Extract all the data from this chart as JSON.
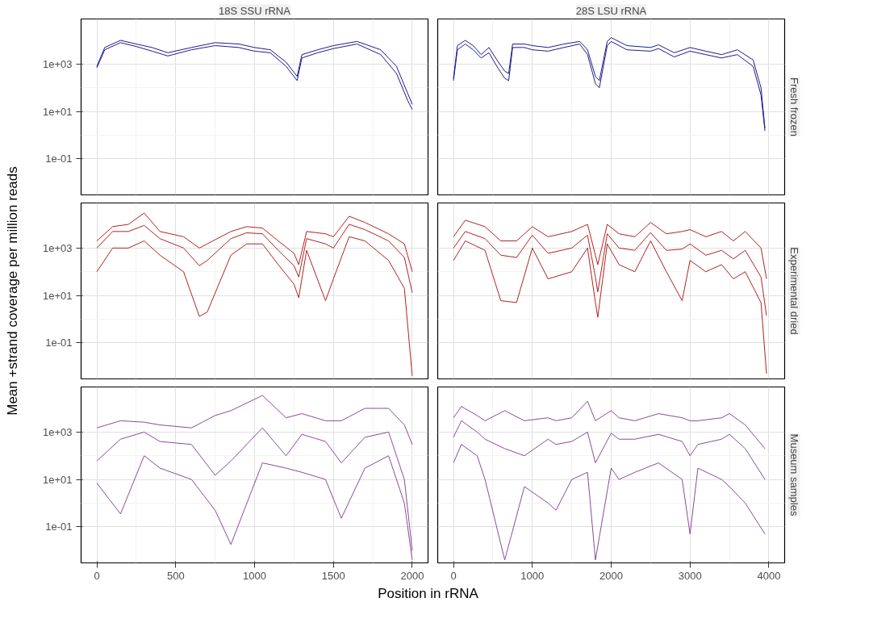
{
  "chart_data": [
    {
      "type": "line",
      "title": "18S SSU rRNA",
      "log": "y",
      "grid": true,
      "tick_labels": "y",
      "line_style": "solid",
      "xlim": [
        -100,
        2100
      ],
      "xticks": [
        0,
        500,
        1000,
        1500,
        2000
      ],
      "ylim": [
        0.003,
        80000
      ],
      "yticks": [
        {
          "value": 0.1,
          "label": "1e-01"
        },
        {
          "value": 10,
          "label": "1e+01"
        },
        {
          "value": 1000,
          "label": "1e+03"
        }
      ],
      "x": [
        0,
        50,
        150,
        250,
        350,
        450,
        600,
        750,
        900,
        1000,
        1100,
        1200,
        1270,
        1300,
        1400,
        1500,
        1650,
        1800,
        1900,
        1970,
        2000
      ],
      "series": [
        {
          "color": "#1c1c8f",
          "values": [
            800,
            5000,
            10000,
            7000,
            5000,
            3000,
            5000,
            8000,
            7000,
            5000,
            4000,
            1200,
            300,
            2500,
            4000,
            6000,
            9000,
            4000,
            800,
            60,
            20
          ]
        },
        {
          "color": "#1c1c8f",
          "values": [
            700,
            4000,
            8000,
            5500,
            3500,
            2200,
            4000,
            6000,
            5000,
            3500,
            3000,
            800,
            200,
            1800,
            3000,
            4500,
            7000,
            2500,
            400,
            30,
            12
          ]
        }
      ]
    },
    {
      "type": "line",
      "title": "28S LSU rRNA",
      "y2label": "Fresh frozen",
      "log": "y",
      "grid": true,
      "tick_labels": false,
      "line_style": "solid",
      "xlim": [
        -200,
        4200
      ],
      "xticks": [
        0,
        1000,
        2000,
        3000,
        4000
      ],
      "ylim": [
        0.003,
        80000
      ],
      "yticks": [
        {
          "value": 0.1,
          "label": null
        },
        {
          "value": 10,
          "label": null
        },
        {
          "value": 1000,
          "label": null
        }
      ],
      "x": [
        0,
        50,
        150,
        250,
        350,
        450,
        550,
        650,
        700,
        750,
        900,
        1000,
        1200,
        1400,
        1600,
        1700,
        1800,
        1850,
        1950,
        2000,
        2200,
        2500,
        2600,
        2800,
        3000,
        3200,
        3400,
        3600,
        3800,
        3900,
        3950
      ],
      "series": [
        {
          "color": "#1c1c8f",
          "values": [
            250,
            6000,
            10000,
            6000,
            2500,
            5000,
            1500,
            500,
            400,
            7000,
            7000,
            6000,
            5000,
            7000,
            9000,
            4000,
            300,
            200,
            9000,
            13000,
            6000,
            5000,
            6500,
            3000,
            5000,
            3500,
            2500,
            4000,
            1500,
            100,
            2
          ]
        },
        {
          "color": "#1c1c8f",
          "values": [
            200,
            4000,
            7000,
            4000,
            1800,
            3000,
            800,
            250,
            200,
            5000,
            5000,
            4000,
            3500,
            5000,
            7000,
            2500,
            150,
            100,
            6000,
            9000,
            4000,
            3500,
            4500,
            2000,
            3500,
            2500,
            1800,
            2500,
            800,
            50,
            1.5
          ]
        }
      ]
    },
    {
      "type": "line",
      "ylabel": "Mean +strand coverage per million reads",
      "log": "y",
      "grid": true,
      "tick_labels": "y",
      "line_style": "solid",
      "xlim": [
        -100,
        2100
      ],
      "xticks": [
        0,
        500,
        1000,
        1500,
        2000
      ],
      "ylim": [
        0.003,
        80000
      ],
      "yticks": [
        {
          "value": 0.1,
          "label": "1e-01"
        },
        {
          "value": 10,
          "label": "1e+01"
        },
        {
          "value": 1000,
          "label": "1e+03"
        }
      ],
      "x": [
        0,
        100,
        200,
        300,
        400,
        550,
        650,
        700,
        850,
        950,
        1050,
        1150,
        1250,
        1280,
        1330,
        1450,
        1500,
        1600,
        1700,
        1850,
        1950,
        2000
      ],
      "series": [
        {
          "color": "#b22222",
          "values": [
            2000,
            8000,
            10000,
            30000,
            5000,
            3000,
            1000,
            1500,
            5000,
            8000,
            7000,
            2000,
            600,
            200,
            5000,
            4000,
            3000,
            22000,
            12000,
            4000,
            1500,
            100
          ]
        },
        {
          "color": "#b22222",
          "values": [
            1000,
            5000,
            5000,
            9000,
            2500,
            1000,
            180,
            300,
            2500,
            4400,
            4000,
            800,
            180,
            60,
            2500,
            1500,
            1000,
            10000,
            6000,
            2000,
            400,
            13
          ]
        },
        {
          "color": "#b22222",
          "values": [
            100,
            1000,
            1000,
            2000,
            500,
            100,
            1.3,
            2,
            500,
            1500,
            1500,
            200,
            30,
            8,
            800,
            6,
            50,
            3000,
            2000,
            300,
            20,
            0.004
          ]
        }
      ]
    },
    {
      "type": "line",
      "y2label": "Experimental dried",
      "log": "y",
      "grid": true,
      "tick_labels": false,
      "line_style": "solid",
      "xlim": [
        -200,
        4200
      ],
      "xticks": [
        0,
        1000,
        2000,
        3000,
        4000
      ],
      "ylim": [
        0.003,
        80000
      ],
      "yticks": [
        {
          "value": 0.1,
          "label": null
        },
        {
          "value": 10,
          "label": null
        },
        {
          "value": 1000,
          "label": null
        }
      ],
      "x": [
        0,
        150,
        400,
        600,
        800,
        1000,
        1200,
        1500,
        1700,
        1800,
        1830,
        1950,
        2100,
        2300,
        2500,
        2700,
        2900,
        3000,
        3200,
        3400,
        3550,
        3700,
        3900,
        3970
      ],
      "series": [
        {
          "color": "#b22222",
          "values": [
            3000,
            15000,
            8000,
            2000,
            2000,
            8000,
            3000,
            5000,
            10000,
            500,
            200,
            10000,
            4000,
            3000,
            12000,
            4000,
            5000,
            6000,
            3000,
            5000,
            2000,
            5000,
            1000,
            50
          ]
        },
        {
          "color": "#b22222",
          "values": [
            1000,
            5000,
            2500,
            500,
            400,
            3500,
            600,
            1000,
            3500,
            60,
            14,
            4000,
            1000,
            800,
            4500,
            800,
            900,
            1500,
            500,
            800,
            350,
            800,
            60,
            1.4
          ]
        },
        {
          "color": "#b22222",
          "values": [
            300,
            2000,
            800,
            6,
            5,
            1000,
            50,
            100,
            1000,
            5,
            1.2,
            1500,
            200,
            100,
            2000,
            100,
            6,
            300,
            100,
            200,
            50,
            100,
            5,
            0.005
          ]
        }
      ]
    },
    {
      "type": "line",
      "xlabel": "Position in rRNA",
      "log": "y",
      "grid": true,
      "line_style": "solid",
      "xlim": [
        -100,
        2100
      ],
      "xticks": [
        0,
        500,
        1000,
        1500,
        2000
      ],
      "ylim": [
        0.003,
        80000
      ],
      "yticks": [
        {
          "value": 0.1,
          "label": "1e-01"
        },
        {
          "value": 10,
          "label": "1e+01"
        },
        {
          "value": 1000,
          "label": "1e+03"
        }
      ],
      "x": [
        0,
        150,
        300,
        400,
        600,
        750,
        850,
        1050,
        1200,
        1300,
        1450,
        1550,
        1700,
        1850,
        1950,
        2000
      ],
      "series": [
        {
          "color": "#8b4a99",
          "values": [
            1500,
            3000,
            2600,
            2000,
            1500,
            5000,
            8000,
            35000,
            4000,
            6000,
            3000,
            3000,
            10000,
            10000,
            2000,
            300
          ]
        },
        {
          "color": "#8b4a99",
          "values": [
            60,
            500,
            1000,
            400,
            300,
            15,
            60,
            1500,
            100,
            800,
            400,
            50,
            600,
            1000,
            10,
            0.01
          ]
        },
        {
          "color": "#8b4a99",
          "values": [
            7,
            0.35,
            100,
            30,
            10,
            0.5,
            0.018,
            50,
            30,
            20,
            10,
            0.23,
            30,
            100,
            1,
            0.004
          ]
        }
      ]
    },
    {
      "type": "line",
      "y2label": "Museum samples",
      "log": "y",
      "grid": true,
      "tick_labels": "x",
      "line_style": "solid",
      "xlim": [
        -200,
        4200
      ],
      "xticks": [
        0,
        1000,
        2000,
        3000,
        4000
      ],
      "ylim": [
        0.003,
        80000
      ],
      "yticks": [
        {
          "value": 0.1,
          "label": null
        },
        {
          "value": 10,
          "label": null
        },
        {
          "value": 1000,
          "label": null
        }
      ],
      "x": [
        0,
        100,
        300,
        400,
        650,
        900,
        1200,
        1300,
        1500,
        1700,
        1800,
        2000,
        2100,
        2300,
        2600,
        2900,
        3000,
        3100,
        3400,
        3500,
        3700,
        3950
      ],
      "series": [
        {
          "color": "#8b4a99",
          "values": [
            4000,
            12000,
            5000,
            3000,
            8000,
            3000,
            4000,
            3000,
            4000,
            20000,
            3000,
            8000,
            4000,
            3000,
            6000,
            4000,
            3000,
            3000,
            4000,
            6000,
            2000,
            200
          ]
        },
        {
          "color": "#8b4a99",
          "values": [
            600,
            3000,
            1000,
            500,
            200,
            100,
            500,
            300,
            400,
            1000,
            50,
            900,
            500,
            500,
            800,
            400,
            100,
            300,
            500,
            800,
            200,
            10
          ]
        },
        {
          "color": "#8b4a99",
          "values": [
            50,
            300,
            100,
            10,
            0.004,
            5,
            1,
            0.5,
            10,
            20,
            0.004,
            30,
            10,
            20,
            50,
            10,
            0.05,
            30,
            10,
            5,
            1,
            0.05
          ]
        }
      ]
    }
  ]
}
